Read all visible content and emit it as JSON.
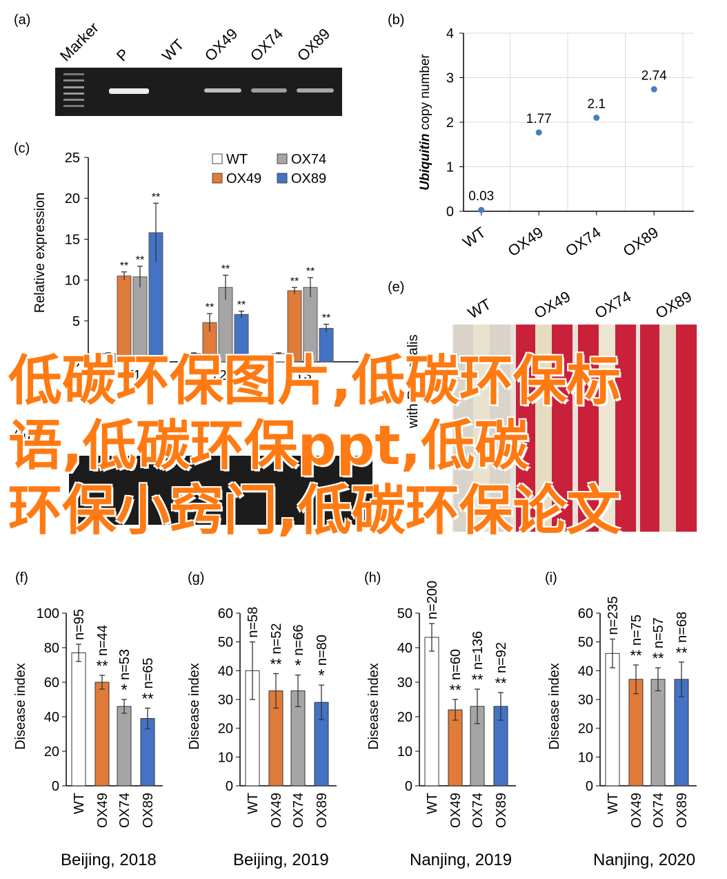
{
  "panels": {
    "a": "(a)",
    "b": "(b)",
    "c": "(c)",
    "d": "(d)",
    "e": "(e)",
    "f": "(f)",
    "g": "(g)",
    "h": "(h)",
    "i": "(i)"
  },
  "gel_a": {
    "lanes": [
      "Marker",
      "P",
      "WT",
      "OX49",
      "OX74",
      "OX89"
    ]
  },
  "photo_e": {
    "lanes": [
      "WT",
      "OX49",
      "OX74",
      "OX89"
    ],
    "side_label_visible": "with R. cerealis"
  },
  "overlay": {
    "lines": [
      "低碳环保图片,低碳环保标",
      "语,低碳环保ppt,低碳",
      "环保小窍门,低碳环保论文"
    ]
  },
  "colors": {
    "WT": "#ffffff",
    "OX49": "#e07b39",
    "OX74": "#a5a5a5",
    "OX89": "#4472c4",
    "overlay": "#ff7a12",
    "point_b": "#4a7cc0"
  },
  "chart_data": [
    {
      "id": "b",
      "type": "scatter",
      "ylabel_italic": "Ubiquitin",
      "ylabel": "copy number",
      "ylim": [
        0,
        4
      ],
      "yticks": [
        0,
        1,
        2,
        3,
        4
      ],
      "categories": [
        "WT",
        "OX49",
        "OX74",
        "OX89"
      ],
      "values": [
        0.03,
        1.77,
        2.1,
        2.74
      ],
      "data_labels": [
        "0.03",
        "1.77",
        "2.1",
        "2.74"
      ],
      "grid": true
    },
    {
      "id": "c",
      "type": "bar",
      "ylabel": "Relative expression",
      "ylim": [
        0,
        25
      ],
      "yticks": [
        0,
        5,
        10,
        15,
        20,
        25
      ],
      "groups": [
        "T1",
        "T2",
        "T3"
      ],
      "legend": [
        "WT",
        "OX74",
        "OX49",
        "OX89"
      ],
      "legend_position": "top-right",
      "series": [
        {
          "name": "WT",
          "values": [
            1.0,
            1.0,
            1.0
          ],
          "errors": [
            0.1,
            0.1,
            0.1
          ],
          "sig": [
            "",
            "",
            ""
          ]
        },
        {
          "name": "OX49",
          "values": [
            10.5,
            4.8,
            8.7
          ],
          "errors": [
            0.5,
            1.1,
            0.4
          ],
          "sig": [
            "**",
            "**",
            "**"
          ]
        },
        {
          "name": "OX74",
          "values": [
            10.4,
            9.1,
            9.1
          ],
          "errors": [
            1.3,
            1.5,
            1.2
          ],
          "sig": [
            "**",
            "**",
            "**"
          ]
        },
        {
          "name": "OX89",
          "values": [
            15.8,
            5.8,
            4.1
          ],
          "errors": [
            3.6,
            0.4,
            0.5
          ],
          "sig": [
            "**",
            "**",
            "**"
          ]
        }
      ]
    },
    {
      "id": "f",
      "type": "bar",
      "ylabel": "Disease index",
      "xlabel": "Beijing, 2018",
      "ylim": [
        0,
        100
      ],
      "yticks": [
        0,
        20,
        40,
        60,
        80,
        100
      ],
      "categories": [
        "WT",
        "OX49",
        "OX74",
        "OX89"
      ],
      "values": [
        77,
        60,
        46,
        39
      ],
      "errors": [
        5,
        4,
        4,
        6
      ],
      "n": [
        "n=95",
        "n=44",
        "n=53",
        "n=65"
      ],
      "sig": [
        "",
        "**",
        "*",
        "**"
      ]
    },
    {
      "id": "g",
      "type": "bar",
      "ylabel": "Disease index",
      "xlabel": "Beijing, 2019",
      "ylim": [
        0,
        60
      ],
      "yticks": [
        0,
        10,
        20,
        30,
        40,
        50,
        60
      ],
      "categories": [
        "WT",
        "OX49",
        "OX74",
        "OX89"
      ],
      "values": [
        40,
        33,
        33,
        29
      ],
      "errors": [
        10,
        6,
        5.5,
        6
      ],
      "n": [
        "n=58",
        "n=52",
        "n=66",
        "n=80"
      ],
      "sig": [
        "",
        "**",
        "*",
        "*"
      ]
    },
    {
      "id": "h",
      "type": "bar",
      "ylabel": "Disease index",
      "xlabel": "Nanjing, 2019",
      "ylim": [
        0,
        50
      ],
      "yticks": [
        0,
        10,
        20,
        30,
        40,
        50
      ],
      "categories": [
        "WT",
        "OX49",
        "OX74",
        "OX89"
      ],
      "values": [
        43,
        22,
        23,
        23
      ],
      "errors": [
        4,
        3,
        5,
        4
      ],
      "n": [
        "n=200",
        "n=60",
        "n=136",
        "n=92"
      ],
      "sig": [
        "",
        "**",
        "**",
        "**"
      ]
    },
    {
      "id": "i",
      "type": "bar",
      "ylabel": "Disease index",
      "xlabel": "Nanjing, 2020",
      "ylim": [
        0,
        60
      ],
      "yticks": [
        0,
        10,
        20,
        30,
        40,
        50,
        60
      ],
      "categories": [
        "WT",
        "OX49",
        "OX74",
        "OX89"
      ],
      "values": [
        46,
        37,
        37,
        37
      ],
      "errors": [
        5,
        5,
        4,
        6
      ],
      "n": [
        "n=235",
        "n=75",
        "n=57",
        "n=68"
      ],
      "sig": [
        "",
        "**",
        "**",
        "**"
      ]
    }
  ]
}
